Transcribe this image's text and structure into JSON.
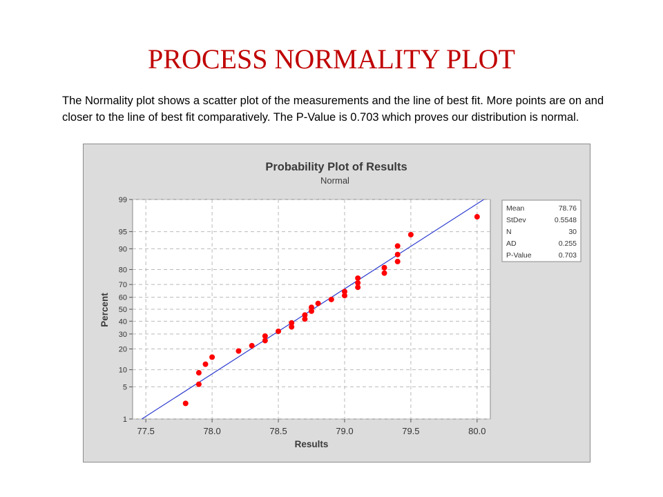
{
  "slide": {
    "title": "PROCESS NORMALITY PLOT",
    "description": "The Normality plot shows a scatter plot of the measurements and the line of best fit. More points are on and closer to the line of best fit comparatively. The P-Value is 0.703 which proves our distribution is normal."
  },
  "chart_data": {
    "type": "scatter",
    "title": "Probability Plot of Results",
    "subtitle": "Normal",
    "xlabel": "Results",
    "ylabel": "Percent",
    "xlim": [
      77.4,
      80.1
    ],
    "y_scale": "normal-probability",
    "ylim": [
      1,
      99
    ],
    "x_ticks": [
      77.5,
      78.0,
      78.5,
      79.0,
      79.5,
      80.0
    ],
    "x_tick_labels": [
      "77.5",
      "78.0",
      "78.5",
      "79.0",
      "79.5",
      "80.0"
    ],
    "y_ticks": [
      1,
      5,
      10,
      20,
      30,
      40,
      50,
      60,
      70,
      80,
      90,
      95,
      99
    ],
    "y_tick_labels": [
      "1",
      "5",
      "10",
      "20",
      "30",
      "40",
      "50",
      "60",
      "70",
      "80",
      "90",
      "95",
      "99"
    ],
    "grid": true,
    "colors": {
      "points": "#ff0000",
      "fit_line": "#2b3bcf",
      "grid": "#b9b9b9",
      "background": "#dcdcdc"
    },
    "fit_line": {
      "mean": 78.76,
      "stdev": 0.5548
    },
    "points": [
      {
        "x": 77.8,
        "y": 2.3
      },
      {
        "x": 77.9,
        "y": 5.6
      },
      {
        "x": 77.9,
        "y": 8.9
      },
      {
        "x": 77.95,
        "y": 12.2
      },
      {
        "x": 78.0,
        "y": 15.5
      },
      {
        "x": 78.2,
        "y": 18.8
      },
      {
        "x": 78.3,
        "y": 22.0
      },
      {
        "x": 78.4,
        "y": 25.3
      },
      {
        "x": 78.4,
        "y": 28.5
      },
      {
        "x": 78.5,
        "y": 32.0
      },
      {
        "x": 78.6,
        "y": 35.4
      },
      {
        "x": 78.6,
        "y": 38.6
      },
      {
        "x": 78.7,
        "y": 41.8
      },
      {
        "x": 78.7,
        "y": 45.1
      },
      {
        "x": 78.75,
        "y": 48.4
      },
      {
        "x": 78.75,
        "y": 51.6
      },
      {
        "x": 78.8,
        "y": 54.9
      },
      {
        "x": 78.9,
        "y": 58.2
      },
      {
        "x": 79.0,
        "y": 61.4
      },
      {
        "x": 79.0,
        "y": 64.6
      },
      {
        "x": 79.1,
        "y": 67.9
      },
      {
        "x": 79.1,
        "y": 71.2
      },
      {
        "x": 79.1,
        "y": 74.5
      },
      {
        "x": 79.3,
        "y": 77.8
      },
      {
        "x": 79.3,
        "y": 81.1
      },
      {
        "x": 79.4,
        "y": 84.4
      },
      {
        "x": 79.4,
        "y": 87.7
      },
      {
        "x": 79.4,
        "y": 91.0
      },
      {
        "x": 79.5,
        "y": 94.3
      },
      {
        "x": 80.0,
        "y": 97.5
      }
    ],
    "stats": [
      {
        "label": "Mean",
        "value": "78.76"
      },
      {
        "label": "StDev",
        "value": "0.5548"
      },
      {
        "label": "N",
        "value": "30"
      },
      {
        "label": "AD",
        "value": "0.255"
      },
      {
        "label": "P-Value",
        "value": "0.703"
      }
    ]
  }
}
